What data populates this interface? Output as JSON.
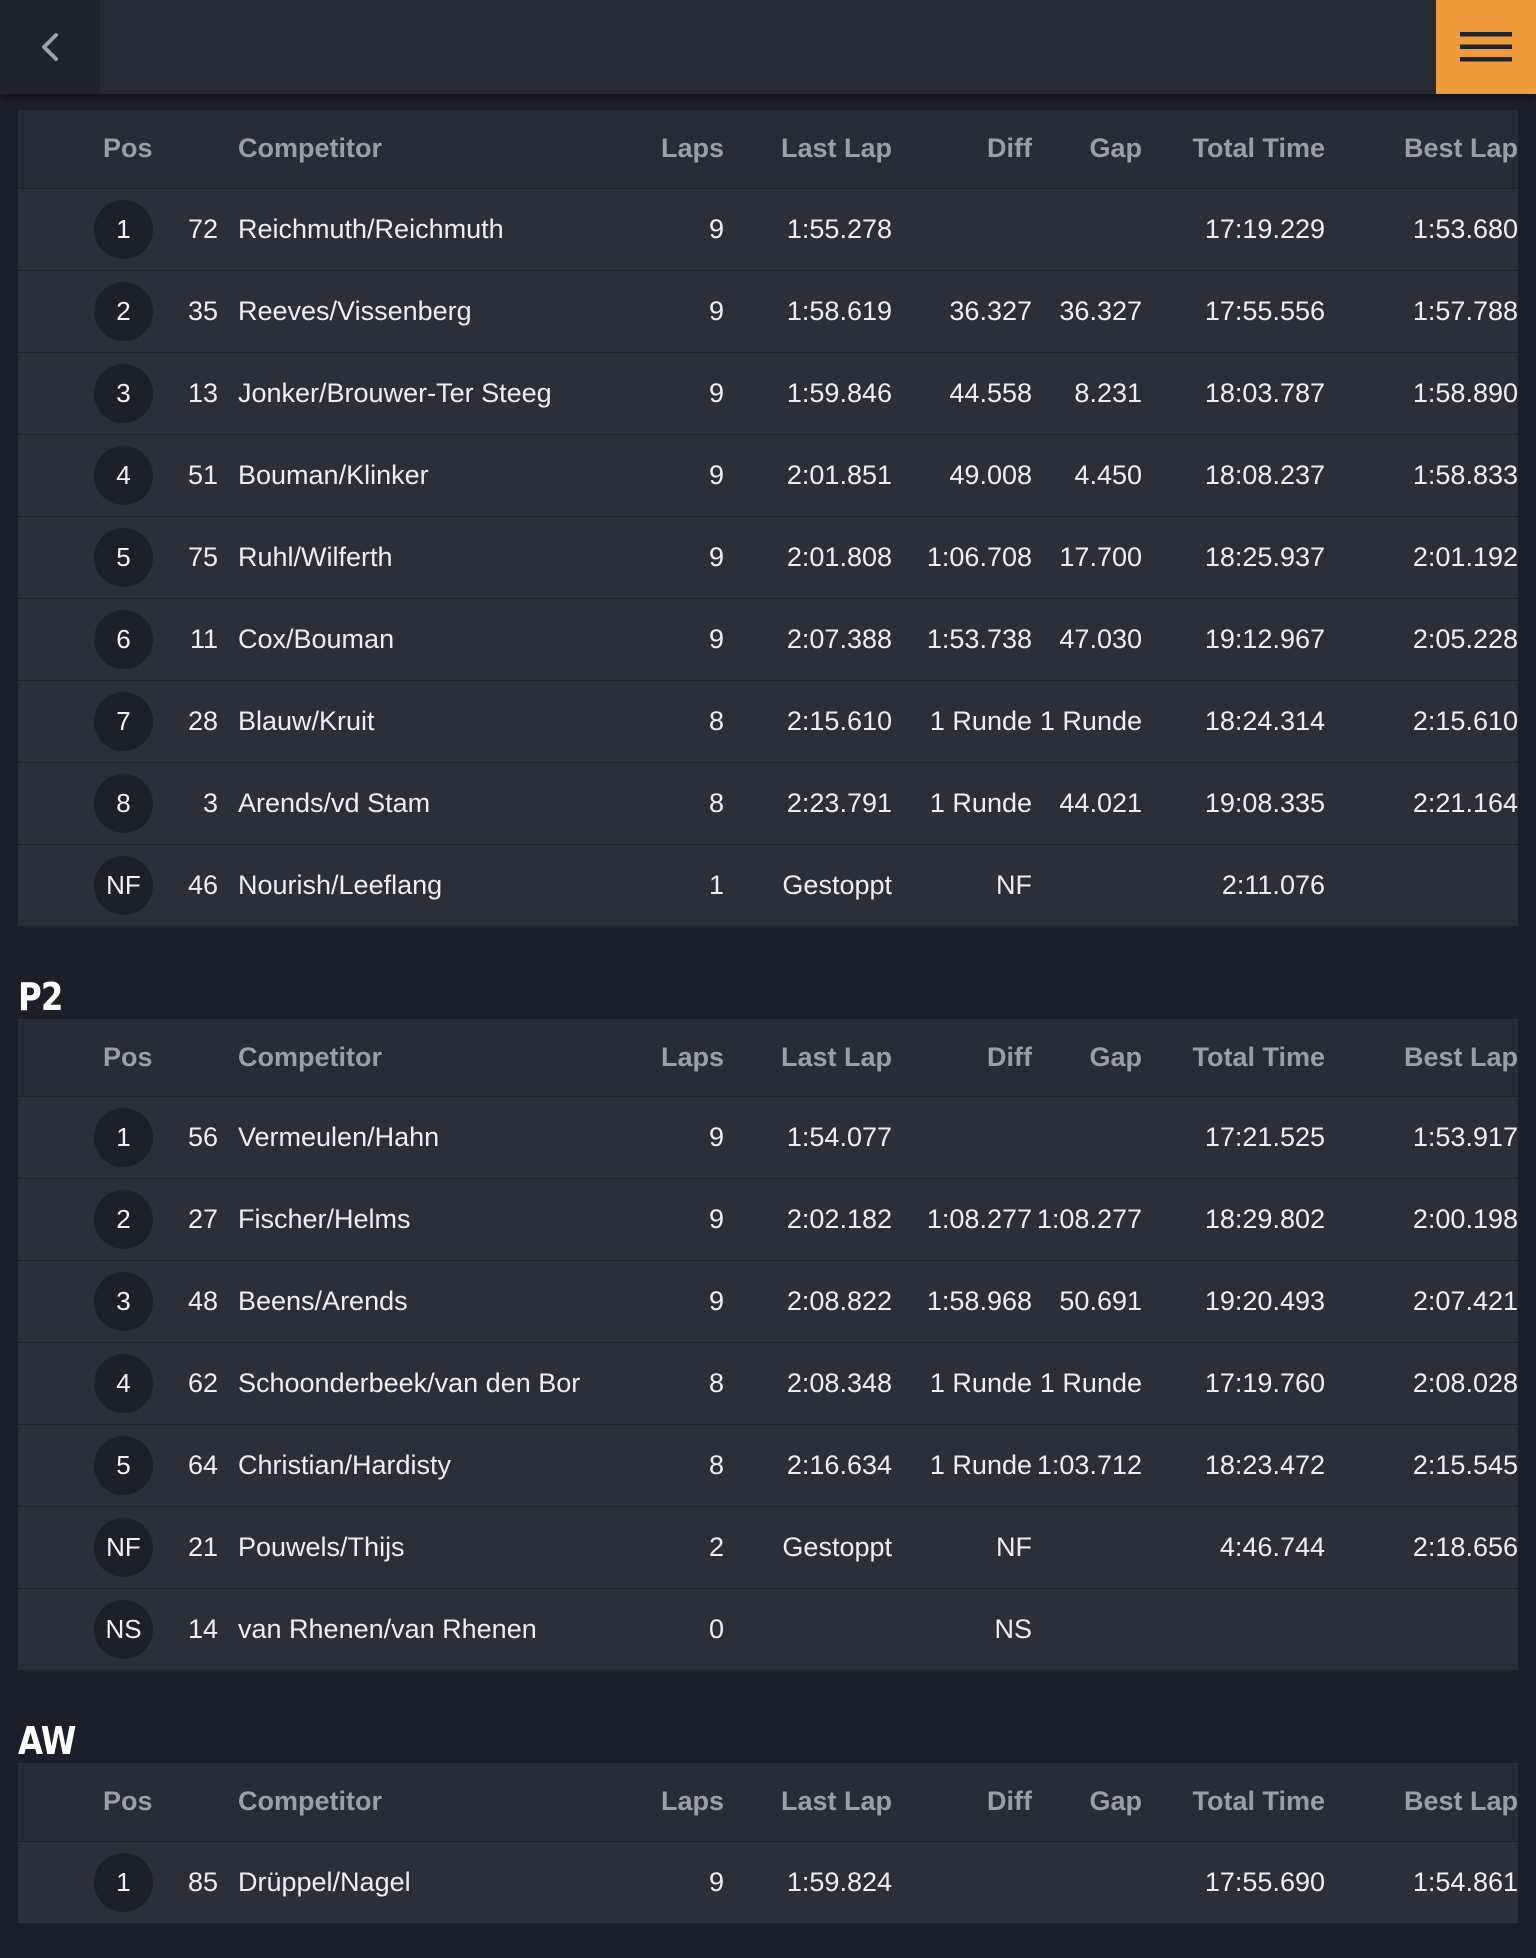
{
  "nav": {
    "back_icon": "chevron-left-icon",
    "menu_icon": "hamburger-menu-icon"
  },
  "columns": [
    "Pos",
    "Competitor",
    "Laps",
    "Last Lap",
    "Diff",
    "Gap",
    "Total Time",
    "Best Lap"
  ],
  "colors": {
    "accent": "#ee9c3c",
    "background": "#1b1f27",
    "row": "#2a2f38"
  },
  "sections": [
    {
      "title": "",
      "rows": [
        {
          "pos": "1",
          "num": "72",
          "competitor": "Reichmuth/Reichmuth",
          "laps": "9",
          "last_lap": "1:55.278",
          "diff": "",
          "gap": "",
          "total": "17:19.229",
          "best": "1:53.680"
        },
        {
          "pos": "2",
          "num": "35",
          "competitor": "Reeves/Vissenberg",
          "laps": "9",
          "last_lap": "1:58.619",
          "diff": "36.327",
          "gap": "36.327",
          "total": "17:55.556",
          "best": "1:57.788"
        },
        {
          "pos": "3",
          "num": "13",
          "competitor": "Jonker/Brouwer-Ter Steeg",
          "laps": "9",
          "last_lap": "1:59.846",
          "diff": "44.558",
          "gap": "8.231",
          "total": "18:03.787",
          "best": "1:58.890"
        },
        {
          "pos": "4",
          "num": "51",
          "competitor": "Bouman/Klinker",
          "laps": "9",
          "last_lap": "2:01.851",
          "diff": "49.008",
          "gap": "4.450",
          "total": "18:08.237",
          "best": "1:58.833"
        },
        {
          "pos": "5",
          "num": "75",
          "competitor": "Ruhl/Wilferth",
          "laps": "9",
          "last_lap": "2:01.808",
          "diff": "1:06.708",
          "gap": "17.700",
          "total": "18:25.937",
          "best": "2:01.192"
        },
        {
          "pos": "6",
          "num": "11",
          "competitor": "Cox/Bouman",
          "laps": "9",
          "last_lap": "2:07.388",
          "diff": "1:53.738",
          "gap": "47.030",
          "total": "19:12.967",
          "best": "2:05.228"
        },
        {
          "pos": "7",
          "num": "28",
          "competitor": "Blauw/Kruit",
          "laps": "8",
          "last_lap": "2:15.610",
          "diff": "1 Runde",
          "gap": "1 Runde",
          "total": "18:24.314",
          "best": "2:15.610"
        },
        {
          "pos": "8",
          "num": "3",
          "competitor": "Arends/vd Stam",
          "laps": "8",
          "last_lap": "2:23.791",
          "diff": "1 Runde",
          "gap": "44.021",
          "total": "19:08.335",
          "best": "2:21.164"
        },
        {
          "pos": "NF",
          "num": "46",
          "competitor": "Nourish/Leeflang",
          "laps": "1",
          "last_lap": "Gestoppt",
          "diff": "NF",
          "gap": "",
          "total": "2:11.076",
          "best": ""
        }
      ]
    },
    {
      "title": "P2",
      "rows": [
        {
          "pos": "1",
          "num": "56",
          "competitor": "Vermeulen/Hahn",
          "laps": "9",
          "last_lap": "1:54.077",
          "diff": "",
          "gap": "",
          "total": "17:21.525",
          "best": "1:53.917"
        },
        {
          "pos": "2",
          "num": "27",
          "competitor": "Fischer/Helms",
          "laps": "9",
          "last_lap": "2:02.182",
          "diff": "1:08.277",
          "gap": "1:08.277",
          "total": "18:29.802",
          "best": "2:00.198"
        },
        {
          "pos": "3",
          "num": "48",
          "competitor": "Beens/Arends",
          "laps": "9",
          "last_lap": "2:08.822",
          "diff": "1:58.968",
          "gap": "50.691",
          "total": "19:20.493",
          "best": "2:07.421"
        },
        {
          "pos": "4",
          "num": "62",
          "competitor": "Schoonderbeek/van den Bor",
          "laps": "8",
          "last_lap": "2:08.348",
          "diff": "1 Runde",
          "gap": "1 Runde",
          "total": "17:19.760",
          "best": "2:08.028"
        },
        {
          "pos": "5",
          "num": "64",
          "competitor": "Christian/Hardisty",
          "laps": "8",
          "last_lap": "2:16.634",
          "diff": "1 Runde",
          "gap": "1:03.712",
          "total": "18:23.472",
          "best": "2:15.545"
        },
        {
          "pos": "NF",
          "num": "21",
          "competitor": "Pouwels/Thijs",
          "laps": "2",
          "last_lap": "Gestoppt",
          "diff": "NF",
          "gap": "",
          "total": "4:46.744",
          "best": "2:18.656"
        },
        {
          "pos": "NS",
          "num": "14",
          "competitor": "van Rhenen/van Rhenen",
          "laps": "0",
          "last_lap": "",
          "diff": "NS",
          "gap": "",
          "total": "",
          "best": ""
        }
      ]
    },
    {
      "title": "AW",
      "rows": [
        {
          "pos": "1",
          "num": "85",
          "competitor": "Drüppel/Nagel",
          "laps": "9",
          "last_lap": "1:59.824",
          "diff": "",
          "gap": "",
          "total": "17:55.690",
          "best": "1:54.861"
        }
      ]
    }
  ]
}
